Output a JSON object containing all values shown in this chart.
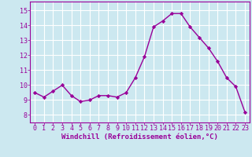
{
  "x": [
    0,
    1,
    2,
    3,
    4,
    5,
    6,
    7,
    8,
    9,
    10,
    11,
    12,
    13,
    14,
    15,
    16,
    17,
    18,
    19,
    20,
    21,
    22,
    23
  ],
  "y": [
    9.5,
    9.2,
    9.6,
    10.0,
    9.3,
    8.9,
    9.0,
    9.3,
    9.3,
    9.2,
    9.5,
    10.5,
    11.9,
    13.9,
    14.3,
    14.8,
    14.8,
    13.9,
    13.2,
    12.5,
    11.6,
    10.5,
    9.9,
    8.2
  ],
  "line_color": "#990099",
  "marker": "D",
  "marker_size": 2.2,
  "bg_color": "#cce8f0",
  "grid_color": "#ffffff",
  "ylabel_ticks": [
    8,
    9,
    10,
    11,
    12,
    13,
    14,
    15
  ],
  "ylim": [
    7.5,
    15.6
  ],
  "xlim": [
    -0.5,
    23.5
  ],
  "xlabel": "Windchill (Refroidissement éolien,°C)",
  "xlabel_fontsize": 6.5,
  "tick_fontsize": 6.0,
  "line_width": 1.0
}
